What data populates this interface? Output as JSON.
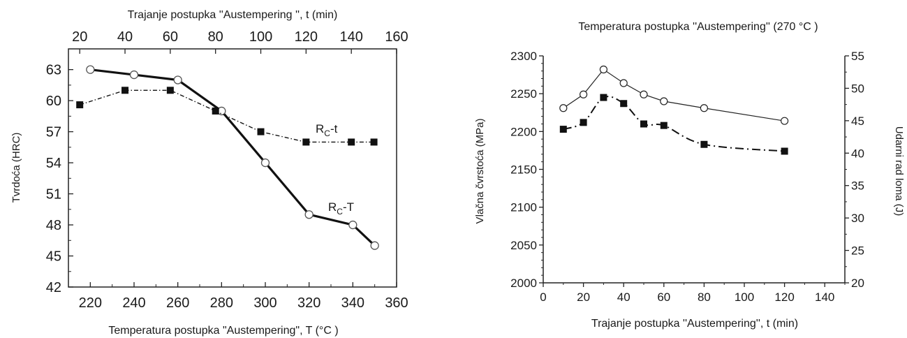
{
  "chart_data": [
    {
      "type": "line",
      "title": "",
      "xlabel": "Temperatura postupka \"Austempering\", T (°C )",
      "x2label": "Trajanje postupka ''Austempering '', t (min)",
      "ylabel": "Tvrdoća (HRC)",
      "xlim": [
        210,
        360
      ],
      "ylim": [
        42,
        65
      ],
      "x2lim": [
        15,
        160
      ],
      "xticks": [
        "220",
        "240",
        "260",
        "280",
        "300",
        "320",
        "340",
        "360"
      ],
      "x2ticks": [
        "20",
        "40",
        "60",
        "80",
        "100",
        "120",
        "140",
        "160"
      ],
      "yticks": [
        "42",
        "45",
        "48",
        "51",
        "54",
        "57",
        "60",
        "63"
      ],
      "grid": false,
      "series": [
        {
          "name": "RC-T",
          "label_main": "R",
          "label_sub": "C",
          "label_tail": "-T",
          "axis": "bottom",
          "marker": "open-circle",
          "line": "solid-thick",
          "x": [
            220,
            240,
            260,
            280,
            300,
            320,
            340,
            350
          ],
          "y": [
            63,
            62.5,
            62,
            59,
            54,
            49,
            48,
            46
          ]
        },
        {
          "name": "RC-t",
          "label_main": "R",
          "label_sub": "C",
          "label_tail": "-t",
          "axis": "top",
          "marker": "filled-square",
          "line": "dash-dot",
          "x": [
            20,
            40,
            60,
            80,
            100,
            120,
            140,
            150
          ],
          "y": [
            59.6,
            61,
            61,
            59,
            57,
            56,
            56,
            56
          ]
        }
      ]
    },
    {
      "type": "line",
      "title": "Temperatura postupka ''Austempering'' (270 °C )",
      "xlabel": "Trajanje postupka ''Austempering'', t (min)",
      "ylabel": "Vlačna čvrstoća (MPa)",
      "y2label": "Udarni rad loma (J)",
      "xlim": [
        0,
        150
      ],
      "ylim": [
        2000,
        2300
      ],
      "y2lim": [
        20,
        55
      ],
      "xticks": [
        "0",
        "20",
        "40",
        "60",
        "80",
        "100",
        "120",
        "140"
      ],
      "yticks": [
        "2000",
        "2050",
        "2100",
        "2150",
        "2200",
        "2250",
        "2300"
      ],
      "y2ticks": [
        "20",
        "25",
        "30",
        "35",
        "40",
        "45",
        "50",
        "55"
      ],
      "grid": false,
      "series": [
        {
          "name": "",
          "axis": "left",
          "marker": "open-circle",
          "line": "solid-thin",
          "x": [
            10,
            20,
            30,
            40,
            50,
            60,
            80,
            120
          ],
          "y": [
            2231,
            2249,
            2282,
            2264,
            2249,
            2240,
            2231,
            2214
          ]
        },
        {
          "name": "",
          "axis": "left",
          "marker": "filled-square",
          "line": "dash-dot",
          "x": [
            10,
            20,
            30,
            40,
            50,
            60,
            80,
            120
          ],
          "y": [
            2203,
            2212,
            2245,
            2237,
            2210,
            2208,
            2183,
            2174
          ]
        }
      ]
    }
  ]
}
